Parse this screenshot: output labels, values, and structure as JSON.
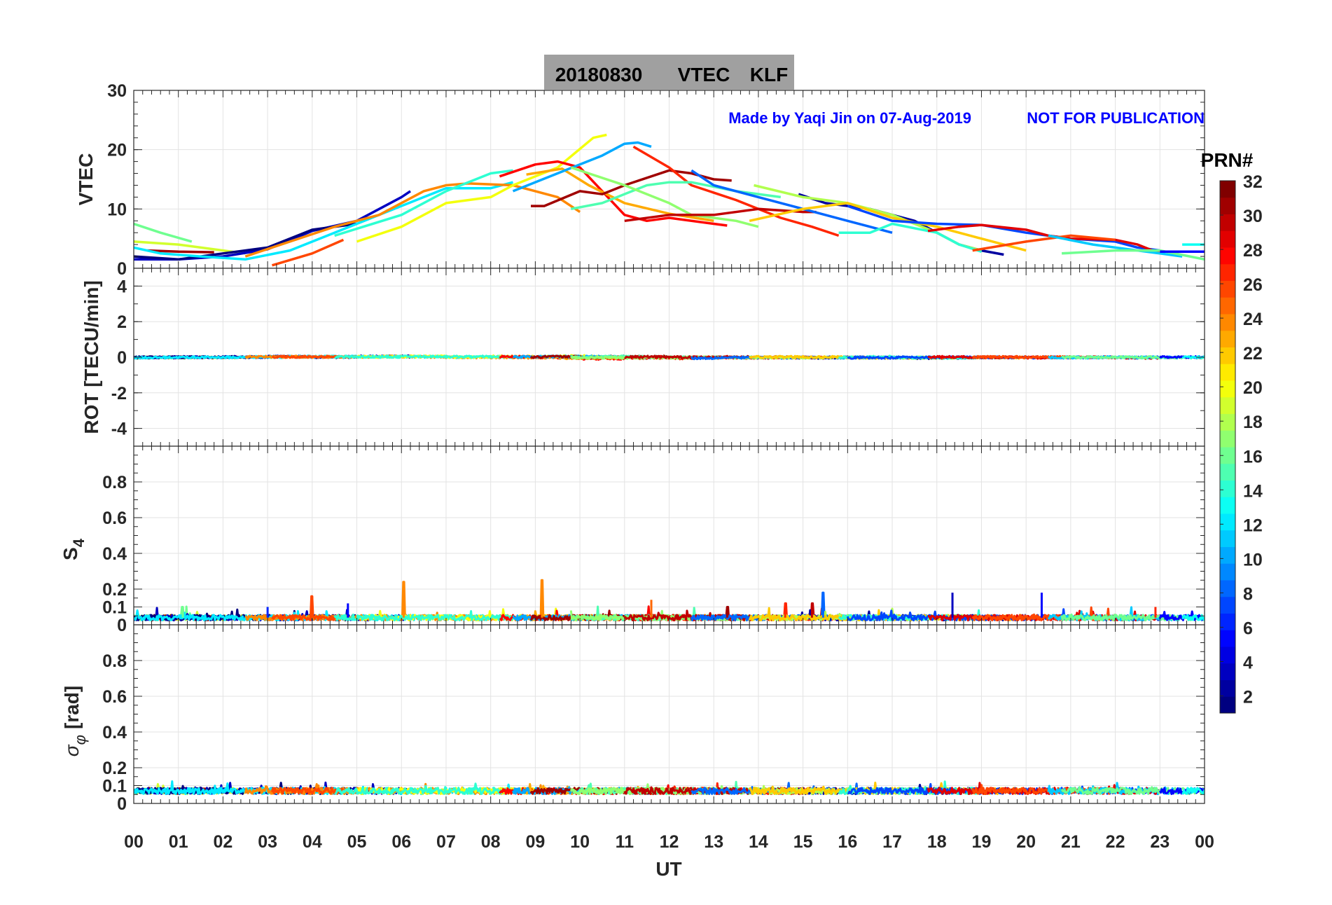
{
  "chart_data": {
    "type": "line",
    "title_box": {
      "date": "20180830",
      "quantity": "VTEC",
      "station": "KLF"
    },
    "annotation": {
      "author": "Made by Yaqi Jin on 07-Aug-2019",
      "note": "NOT FOR PUBLICATION"
    },
    "xlabel": "UT",
    "xlim": [
      0,
      24
    ],
    "x_tick_labels": [
      "00",
      "01",
      "02",
      "03",
      "04",
      "05",
      "06",
      "07",
      "08",
      "09",
      "10",
      "11",
      "12",
      "13",
      "14",
      "15",
      "16",
      "17",
      "18",
      "19",
      "20",
      "21",
      "22",
      "23",
      "00"
    ],
    "colorbar": {
      "label": "PRN#",
      "range": [
        1,
        32
      ],
      "ticks": [
        "2",
        "4",
        "6",
        "8",
        "10",
        "12",
        "14",
        "16",
        "18",
        "20",
        "22",
        "24",
        "26",
        "28",
        "30",
        "32"
      ],
      "colormap": "jet"
    },
    "panels": [
      {
        "ylabel": "VTEC",
        "ylim": [
          0,
          30
        ],
        "ticks": [
          0,
          10,
          20,
          30
        ],
        "tick_labels": [
          "0",
          "10",
          "20",
          "30"
        ]
      },
      {
        "ylabel": "ROT [TECU/min]",
        "ylim": [
          -5,
          5
        ],
        "ticks": [
          -4,
          -2,
          0,
          2,
          4
        ],
        "tick_labels": [
          "-4",
          "-2",
          "0",
          "2",
          "4"
        ]
      },
      {
        "ylabel_main": "S",
        "ylabel_sub": "4",
        "ylim": [
          0,
          1
        ],
        "ticks": [
          0,
          0.1,
          0.2,
          0.4,
          0.6,
          0.8
        ],
        "tick_labels": [
          "0",
          "0.1",
          "0.2",
          "0.4",
          "0.6",
          "0.8"
        ]
      },
      {
        "ylabel_main": "σ",
        "ylabel_sub": "φ",
        "ylabel_unit": "[rad]",
        "ylim": [
          0,
          1
        ],
        "ticks": [
          0,
          0.1,
          0.2,
          0.4,
          0.6,
          0.8
        ],
        "tick_labels": [
          "0",
          "0.1",
          "0.2",
          "0.4",
          "0.6",
          "0.8"
        ]
      }
    ],
    "vtec_arcs": [
      {
        "prn": 16,
        "points": [
          [
            0,
            7.5
          ],
          [
            0.6,
            6
          ],
          [
            1.3,
            4.5
          ]
        ]
      },
      {
        "prn": 19,
        "points": [
          [
            0,
            4.5
          ],
          [
            1,
            4
          ],
          [
            2.5,
            2.5
          ]
        ]
      },
      {
        "prn": 31,
        "points": [
          [
            0.3,
            3
          ],
          [
            1,
            2.8
          ],
          [
            1.8,
            2.7
          ]
        ]
      },
      {
        "prn": 3,
        "points": [
          [
            0,
            1.5
          ],
          [
            1,
            1.5
          ],
          [
            2,
            2
          ],
          [
            3,
            3.2
          ],
          [
            4,
            6.3
          ],
          [
            5,
            8
          ],
          [
            6,
            12
          ],
          [
            6.2,
            13
          ]
        ]
      },
      {
        "prn": 1,
        "points": [
          [
            0,
            2
          ],
          [
            1,
            1.5
          ],
          [
            2,
            2.5
          ],
          [
            3,
            3.5
          ],
          [
            4,
            6.5
          ],
          [
            5,
            7.5
          ]
        ]
      },
      {
        "prn": 12,
        "points": [
          [
            0,
            3.5
          ],
          [
            0.6,
            2.5
          ],
          [
            1.5,
            2
          ],
          [
            2.5,
            1.5
          ],
          [
            3.5,
            3
          ],
          [
            4.5,
            6
          ],
          [
            5.5,
            9
          ],
          [
            6.5,
            12
          ],
          [
            7,
            13.5
          ],
          [
            8,
            13.5
          ],
          [
            8.5,
            14.5
          ]
        ]
      },
      {
        "prn": 24,
        "points": [
          [
            2.5,
            2
          ],
          [
            3.5,
            4.5
          ],
          [
            4.5,
            7
          ],
          [
            5.5,
            9
          ],
          [
            6.5,
            13
          ],
          [
            7,
            14
          ],
          [
            7.5,
            14.3
          ],
          [
            8.5,
            14
          ],
          [
            9.5,
            12
          ],
          [
            10,
            9.5
          ]
        ]
      },
      {
        "prn": 26,
        "points": [
          [
            3.1,
            0.5
          ],
          [
            4,
            2.5
          ],
          [
            4.7,
            4.8
          ]
        ]
      },
      {
        "prn": 20,
        "points": [
          [
            5,
            4.5
          ],
          [
            6,
            7
          ],
          [
            7,
            11
          ],
          [
            8,
            12
          ],
          [
            8.5,
            14
          ],
          [
            9.5,
            17
          ],
          [
            10.3,
            22
          ],
          [
            10.6,
            22.5
          ]
        ]
      },
      {
        "prn": 14,
        "points": [
          [
            4.5,
            5.5
          ],
          [
            6,
            9
          ],
          [
            7,
            13
          ],
          [
            8,
            16
          ],
          [
            8.5,
            16.5
          ]
        ]
      },
      {
        "prn": 28,
        "points": [
          [
            8.2,
            15.5
          ],
          [
            9,
            17.5
          ],
          [
            9.5,
            18
          ],
          [
            10,
            17
          ],
          [
            10.5,
            13
          ],
          [
            11,
            9
          ],
          [
            11.5,
            8
          ],
          [
            12,
            8.5
          ],
          [
            13,
            7.5
          ],
          [
            13.3,
            7.2
          ]
        ]
      },
      {
        "prn": 23,
        "points": [
          [
            8.8,
            15.8
          ],
          [
            9.6,
            16.8
          ],
          [
            10.2,
            14
          ],
          [
            11,
            11
          ],
          [
            12,
            9.2
          ],
          [
            13,
            8
          ]
        ]
      },
      {
        "prn": 10,
        "points": [
          [
            8.5,
            13
          ],
          [
            9.5,
            16
          ],
          [
            10,
            17.5
          ],
          [
            10.5,
            19
          ],
          [
            11,
            21
          ],
          [
            11.3,
            21.2
          ],
          [
            11.6,
            20.5
          ]
        ]
      },
      {
        "prn": 31,
        "points": [
          [
            8.9,
            10.5
          ],
          [
            9.2,
            10.5
          ],
          [
            10,
            13
          ],
          [
            10.5,
            12.5
          ],
          [
            11,
            14
          ],
          [
            12,
            16.5
          ],
          [
            12.5,
            16
          ],
          [
            13,
            15
          ],
          [
            13.4,
            14.8
          ]
        ]
      },
      {
        "prn": 27,
        "points": [
          [
            11.2,
            20.5
          ],
          [
            12,
            17
          ],
          [
            12.5,
            14
          ],
          [
            13.5,
            11.5
          ],
          [
            14.5,
            8.5
          ],
          [
            15.2,
            7
          ],
          [
            15.8,
            5.5
          ]
        ]
      },
      {
        "prn": 15,
        "points": [
          [
            9.8,
            10
          ],
          [
            10.5,
            11
          ],
          [
            11.5,
            14
          ],
          [
            12,
            14.5
          ],
          [
            12.5,
            14.5
          ],
          [
            13.5,
            13
          ],
          [
            14.5,
            12
          ]
        ]
      },
      {
        "prn": 17,
        "points": [
          [
            9.8,
            17
          ],
          [
            11,
            14
          ],
          [
            12,
            11
          ],
          [
            12.5,
            9
          ],
          [
            13.5,
            8
          ],
          [
            14,
            7
          ]
        ]
      },
      {
        "prn": 30,
        "points": [
          [
            11,
            8
          ],
          [
            12,
            9
          ],
          [
            13,
            9
          ],
          [
            14,
            10
          ],
          [
            15,
            9.5
          ],
          [
            15.3,
            9.5
          ]
        ]
      },
      {
        "prn": 8,
        "points": [
          [
            12.5,
            16.5
          ],
          [
            13,
            14
          ],
          [
            14,
            12
          ],
          [
            15,
            10
          ],
          [
            16,
            8
          ],
          [
            16.5,
            7
          ],
          [
            17,
            6
          ]
        ]
      },
      {
        "prn": 2,
        "points": [
          [
            14.9,
            12.5
          ],
          [
            15.5,
            11
          ],
          [
            16.5,
            10
          ],
          [
            17.5,
            8
          ],
          [
            18,
            6
          ],
          [
            18.5,
            4
          ],
          [
            19,
            3
          ],
          [
            19.5,
            2.3
          ]
        ]
      },
      {
        "prn": 18,
        "points": [
          [
            13.9,
            14
          ],
          [
            15,
            12
          ],
          [
            16,
            11
          ],
          [
            17,
            9
          ],
          [
            18,
            6
          ],
          [
            18.5,
            4
          ],
          [
            19,
            3
          ]
        ]
      },
      {
        "prn": 22,
        "points": [
          [
            13.8,
            8
          ],
          [
            15,
            10
          ],
          [
            16,
            11
          ],
          [
            17,
            8.5
          ],
          [
            18,
            7
          ],
          [
            19,
            5
          ],
          [
            20,
            3
          ]
        ]
      },
      {
        "prn": 14,
        "points": [
          [
            15.8,
            6
          ],
          [
            16.5,
            6
          ],
          [
            17,
            7.5
          ],
          [
            18,
            6
          ],
          [
            18.5,
            4
          ],
          [
            19,
            2.8
          ]
        ]
      },
      {
        "prn": 7,
        "points": [
          [
            16,
            10.5
          ],
          [
            17,
            8
          ],
          [
            18,
            7.5
          ],
          [
            19,
            7.3
          ],
          [
            20,
            6
          ],
          [
            21,
            5
          ],
          [
            22,
            4.5
          ],
          [
            22.5,
            3.5
          ],
          [
            23,
            3
          ]
        ]
      },
      {
        "prn": 29,
        "points": [
          [
            17.8,
            6.3
          ],
          [
            18.5,
            7
          ],
          [
            19,
            7.3
          ],
          [
            20,
            6.5
          ],
          [
            20.5,
            5.5
          ],
          [
            21,
            5
          ],
          [
            22,
            4.8
          ],
          [
            22.5,
            4
          ],
          [
            23,
            2.5
          ]
        ]
      },
      {
        "prn": 26,
        "points": [
          [
            18.8,
            3
          ],
          [
            20,
            4.5
          ],
          [
            21,
            5.5
          ],
          [
            22,
            4.8
          ]
        ]
      },
      {
        "prn": 11,
        "points": [
          [
            20.5,
            5.5
          ],
          [
            21.5,
            4
          ],
          [
            22.5,
            3
          ],
          [
            23,
            2.5
          ],
          [
            23.5,
            2
          ]
        ]
      },
      {
        "prn": 16,
        "points": [
          [
            20.8,
            2.5
          ],
          [
            22,
            3
          ],
          [
            23,
            3
          ],
          [
            24,
            1.5
          ]
        ]
      },
      {
        "prn": 5,
        "points": [
          [
            23,
            2.8
          ],
          [
            24,
            2.8
          ]
        ]
      },
      {
        "prn": 13,
        "points": [
          [
            23.5,
            4
          ],
          [
            24,
            4
          ]
        ]
      }
    ],
    "s4_baseline": 0.04,
    "s4_spikes": [
      [
        4.0,
        0.16,
        26
      ],
      [
        4.8,
        0.12,
        5
      ],
      [
        6.05,
        0.24,
        24
      ],
      [
        9.15,
        0.25,
        24
      ],
      [
        11.6,
        0.14,
        25
      ],
      [
        14.6,
        0.12,
        27
      ],
      [
        15.2,
        0.12,
        30
      ],
      [
        15.45,
        0.18,
        8
      ],
      [
        18.35,
        0.18,
        3
      ],
      [
        20.35,
        0.18,
        5
      ],
      [
        3.0,
        0.1,
        6
      ],
      [
        1.1,
        0.1,
        16
      ],
      [
        22.9,
        0.1,
        27
      ],
      [
        13.3,
        0.1,
        31
      ]
    ],
    "sigma_phi_baseline": 0.07
  }
}
